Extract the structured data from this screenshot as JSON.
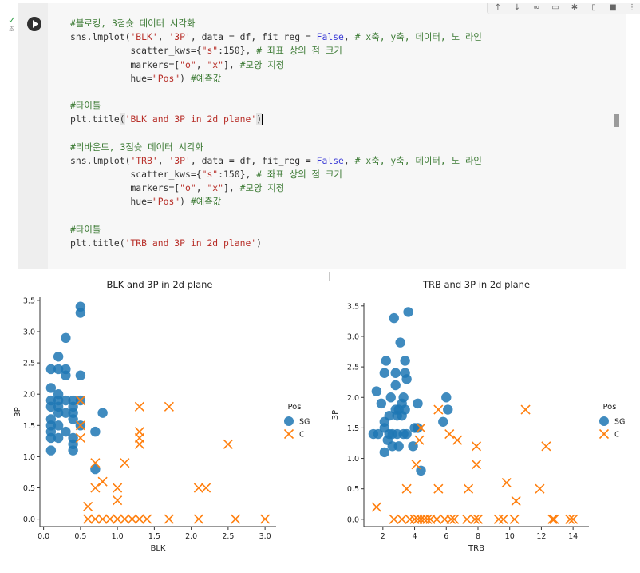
{
  "cell": {
    "status_check": "✓",
    "status_sub": "초",
    "toolbar_icons": [
      "arrow-up-icon",
      "arrow-down-icon",
      "link-icon",
      "comment-icon",
      "settings-icon",
      "mirror-icon",
      "delete-icon",
      "more-icon"
    ],
    "code_lines": [
      [
        {
          "t": "#블로킹, 3점슛 데이터 시각화",
          "c": "cm"
        }
      ],
      [
        {
          "t": "sns.lmplot(",
          "c": ""
        },
        {
          "t": "'BLK'",
          "c": "str"
        },
        {
          "t": ", ",
          "c": ""
        },
        {
          "t": "'3P'",
          "c": "str"
        },
        {
          "t": ", data = df, fit_reg = ",
          "c": ""
        },
        {
          "t": "False",
          "c": "kw"
        },
        {
          "t": ", ",
          "c": ""
        },
        {
          "t": "# x축, y축, 데이터, 노 라인",
          "c": "cm"
        }
      ],
      [
        {
          "t": "           scatter_kws={",
          "c": ""
        },
        {
          "t": "\"s\"",
          "c": "str"
        },
        {
          "t": ":150}, ",
          "c": ""
        },
        {
          "t": "# 좌표 상의 점 크기",
          "c": "cm"
        }
      ],
      [
        {
          "t": "           markers=[",
          "c": ""
        },
        {
          "t": "\"o\"",
          "c": "str"
        },
        {
          "t": ", ",
          "c": ""
        },
        {
          "t": "\"x\"",
          "c": "str"
        },
        {
          "t": "], ",
          "c": ""
        },
        {
          "t": "#모양 지정",
          "c": "cm"
        }
      ],
      [
        {
          "t": "           hue=",
          "c": ""
        },
        {
          "t": "\"Pos\"",
          "c": "str"
        },
        {
          "t": ") ",
          "c": ""
        },
        {
          "t": "#예측값",
          "c": "cm"
        }
      ],
      [],
      [
        {
          "t": "#타이틀",
          "c": "cm"
        }
      ],
      [
        {
          "t": "plt.title",
          "c": ""
        },
        {
          "t": "(",
          "c": "sel"
        },
        {
          "t": "'BLK and 3P in 2d plane'",
          "c": "str"
        },
        {
          "t": ")",
          "c": "sel"
        },
        {
          "t": "CURSOR",
          "c": "cursor"
        }
      ],
      [],
      [
        {
          "t": "#리바운드, 3점슛 데이터 시각화",
          "c": "cm"
        }
      ],
      [
        {
          "t": "sns.lmplot(",
          "c": ""
        },
        {
          "t": "'TRB'",
          "c": "str"
        },
        {
          "t": ", ",
          "c": ""
        },
        {
          "t": "'3P'",
          "c": "str"
        },
        {
          "t": ", data = df, fit_reg = ",
          "c": ""
        },
        {
          "t": "False",
          "c": "kw"
        },
        {
          "t": ", ",
          "c": ""
        },
        {
          "t": "# x축, y축, 데이터, 노 라인",
          "c": "cm"
        }
      ],
      [
        {
          "t": "           scatter_kws={",
          "c": ""
        },
        {
          "t": "\"s\"",
          "c": "str"
        },
        {
          "t": ":150}, ",
          "c": ""
        },
        {
          "t": "# 좌표 상의 점 크기",
          "c": "cm"
        }
      ],
      [
        {
          "t": "           markers=[",
          "c": ""
        },
        {
          "t": "\"o\"",
          "c": "str"
        },
        {
          "t": ", ",
          "c": ""
        },
        {
          "t": "\"x\"",
          "c": "str"
        },
        {
          "t": "], ",
          "c": ""
        },
        {
          "t": "#모양 지정",
          "c": "cm"
        }
      ],
      [
        {
          "t": "           hue=",
          "c": ""
        },
        {
          "t": "\"Pos\"",
          "c": "str"
        },
        {
          "t": ") ",
          "c": ""
        },
        {
          "t": "#예측값",
          "c": "cm"
        }
      ],
      [],
      [
        {
          "t": "#타이틀",
          "c": "cm"
        }
      ],
      [
        {
          "t": "plt.title(",
          "c": ""
        },
        {
          "t": "'TRB and 3P in 2d plane'",
          "c": "str"
        },
        {
          "t": ")",
          "c": ""
        }
      ]
    ]
  },
  "colors": {
    "sg": "#1f77b4",
    "c": "#ff7f0e"
  },
  "chart_data": [
    {
      "type": "scatter",
      "title": "BLK and 3P in 2d plane",
      "xlabel": "BLK",
      "ylabel": "3P",
      "xlim": [
        -0.05,
        3.15
      ],
      "ylim": [
        -0.12,
        3.55
      ],
      "xticks": [
        0.0,
        0.5,
        1.0,
        1.5,
        2.0,
        2.5,
        3.0
      ],
      "xtick_labels": [
        "0.0",
        "0.5",
        "1.0",
        "1.5",
        "2.0",
        "2.5",
        "3.0"
      ],
      "yticks": [
        0.0,
        0.5,
        1.0,
        1.5,
        2.0,
        2.5,
        3.0,
        3.5
      ],
      "ytick_labels": [
        "0.0",
        "0.5",
        "1.0",
        "1.5",
        "2.0",
        "2.5",
        "3.0",
        "3.5"
      ],
      "legend_title": "Pos",
      "legend_position": "right",
      "series": [
        {
          "name": "SG",
          "marker": "o",
          "points": [
            [
              0.1,
              1.1
            ],
            [
              0.1,
              1.3
            ],
            [
              0.1,
              1.4
            ],
            [
              0.1,
              1.5
            ],
            [
              0.1,
              1.6
            ],
            [
              0.1,
              1.8
            ],
            [
              0.1,
              1.9
            ],
            [
              0.1,
              2.1
            ],
            [
              0.1,
              2.4
            ],
            [
              0.2,
              1.3
            ],
            [
              0.2,
              1.5
            ],
            [
              0.2,
              1.7
            ],
            [
              0.2,
              1.8
            ],
            [
              0.2,
              1.9
            ],
            [
              0.2,
              2.0
            ],
            [
              0.2,
              2.4
            ],
            [
              0.2,
              2.6
            ],
            [
              0.3,
              1.4
            ],
            [
              0.3,
              1.7
            ],
            [
              0.3,
              1.9
            ],
            [
              0.3,
              2.3
            ],
            [
              0.3,
              2.4
            ],
            [
              0.3,
              2.9
            ],
            [
              0.4,
              1.1
            ],
            [
              0.4,
              1.2
            ],
            [
              0.4,
              1.3
            ],
            [
              0.4,
              1.6
            ],
            [
              0.4,
              1.7
            ],
            [
              0.4,
              1.8
            ],
            [
              0.4,
              1.9
            ],
            [
              0.5,
              1.5
            ],
            [
              0.5,
              1.9
            ],
            [
              0.5,
              2.3
            ],
            [
              0.5,
              3.3
            ],
            [
              0.5,
              3.4
            ],
            [
              0.7,
              0.8
            ],
            [
              0.7,
              1.4
            ],
            [
              0.8,
              1.7
            ]
          ]
        },
        {
          "name": "C",
          "marker": "x",
          "points": [
            [
              0.5,
              1.3
            ],
            [
              0.5,
              1.5
            ],
            [
              0.5,
              1.9
            ],
            [
              0.6,
              0.2
            ],
            [
              0.6,
              0.0
            ],
            [
              0.7,
              0.0
            ],
            [
              0.7,
              0.5
            ],
            [
              0.7,
              0.9
            ],
            [
              0.8,
              0.0
            ],
            [
              0.8,
              0.6
            ],
            [
              0.9,
              0.0
            ],
            [
              1.0,
              0.0
            ],
            [
              1.0,
              0.3
            ],
            [
              1.0,
              0.5
            ],
            [
              1.1,
              0.0
            ],
            [
              1.1,
              0.9
            ],
            [
              1.2,
              0.0
            ],
            [
              1.3,
              0.0
            ],
            [
              1.3,
              1.2
            ],
            [
              1.3,
              1.3
            ],
            [
              1.3,
              1.4
            ],
            [
              1.3,
              1.8
            ],
            [
              1.4,
              0.0
            ],
            [
              1.7,
              0.0
            ],
            [
              1.7,
              1.8
            ],
            [
              2.1,
              0.0
            ],
            [
              2.1,
              0.5
            ],
            [
              2.2,
              0.5
            ],
            [
              2.5,
              1.2
            ],
            [
              2.6,
              0.0
            ],
            [
              3.0,
              0.0
            ]
          ]
        }
      ]
    },
    {
      "type": "scatter",
      "title": "TRB and 3P in 2d plane",
      "xlabel": "TRB",
      "ylabel": "3P",
      "xlim": [
        0.8,
        15.0
      ],
      "ylim": [
        -0.12,
        3.55
      ],
      "xticks": [
        2,
        4,
        6,
        8,
        10,
        12,
        14
      ],
      "xtick_labels": [
        "2",
        "4",
        "6",
        "8",
        "10",
        "12",
        "14"
      ],
      "yticks": [
        0.0,
        0.5,
        1.0,
        1.5,
        2.0,
        2.5,
        3.0,
        3.5
      ],
      "ytick_labels": [
        "0.0",
        "0.5",
        "1.0",
        "1.5",
        "2.0",
        "2.5",
        "3.0",
        "3.5"
      ],
      "legend_title": "Pos",
      "legend_position": "right",
      "series": [
        {
          "name": "SG",
          "marker": "o",
          "points": [
            [
              1.4,
              1.4
            ],
            [
              1.6,
              2.1
            ],
            [
              1.7,
              1.4
            ],
            [
              1.9,
              1.9
            ],
            [
              2.1,
              1.1
            ],
            [
              2.1,
              1.5
            ],
            [
              2.1,
              1.6
            ],
            [
              2.1,
              2.4
            ],
            [
              2.2,
              2.6
            ],
            [
              2.3,
              1.3
            ],
            [
              2.4,
              1.4
            ],
            [
              2.4,
              1.7
            ],
            [
              2.5,
              2.0
            ],
            [
              2.6,
              1.4
            ],
            [
              2.6,
              1.2
            ],
            [
              2.7,
              3.3
            ],
            [
              2.8,
              1.8
            ],
            [
              2.8,
              2.2
            ],
            [
              2.8,
              2.4
            ],
            [
              2.9,
              1.4
            ],
            [
              2.9,
              1.7
            ],
            [
              3.0,
              1.2
            ],
            [
              3.0,
              1.8
            ],
            [
              3.1,
              2.9
            ],
            [
              3.2,
              1.7
            ],
            [
              3.2,
              1.9
            ],
            [
              3.3,
              2.0
            ],
            [
              3.3,
              1.4
            ],
            [
              3.4,
              1.8
            ],
            [
              3.4,
              2.6
            ],
            [
              3.4,
              2.4
            ],
            [
              3.5,
              2.3
            ],
            [
              3.5,
              1.4
            ],
            [
              3.6,
              3.4
            ],
            [
              3.9,
              1.2
            ],
            [
              4.0,
              1.5
            ],
            [
              4.2,
              1.9
            ],
            [
              4.2,
              1.5
            ],
            [
              4.4,
              0.8
            ],
            [
              5.8,
              1.6
            ],
            [
              6.0,
              2.0
            ],
            [
              6.1,
              1.8
            ]
          ]
        },
        {
          "name": "C",
          "marker": "x",
          "points": [
            [
              1.6,
              0.2
            ],
            [
              2.7,
              0.0
            ],
            [
              3.2,
              0.0
            ],
            [
              3.5,
              0.5
            ],
            [
              3.7,
              0.0
            ],
            [
              4.0,
              0.0
            ],
            [
              4.1,
              0.9
            ],
            [
              4.2,
              0.0
            ],
            [
              4.3,
              1.3
            ],
            [
              4.4,
              0.0
            ],
            [
              4.4,
              1.5
            ],
            [
              4.6,
              0.0
            ],
            [
              4.8,
              0.0
            ],
            [
              5.0,
              0.0
            ],
            [
              5.4,
              0.0
            ],
            [
              5.5,
              0.5
            ],
            [
              5.5,
              1.8
            ],
            [
              5.9,
              0.0
            ],
            [
              6.2,
              1.4
            ],
            [
              6.3,
              0.0
            ],
            [
              6.5,
              0.0
            ],
            [
              6.7,
              1.3
            ],
            [
              7.3,
              0.0
            ],
            [
              7.4,
              0.5
            ],
            [
              7.8,
              0.0
            ],
            [
              7.9,
              0.9
            ],
            [
              7.9,
              1.2
            ],
            [
              8.0,
              0.0
            ],
            [
              9.3,
              0.0
            ],
            [
              9.6,
              0.0
            ],
            [
              9.8,
              0.6
            ],
            [
              10.3,
              0.0
            ],
            [
              10.4,
              0.3
            ],
            [
              11.0,
              1.8
            ],
            [
              11.9,
              0.5
            ],
            [
              12.3,
              1.2
            ],
            [
              12.7,
              0.0
            ],
            [
              12.8,
              0.0
            ],
            [
              13.8,
              0.0
            ],
            [
              14.0,
              0.0
            ]
          ]
        }
      ]
    }
  ]
}
